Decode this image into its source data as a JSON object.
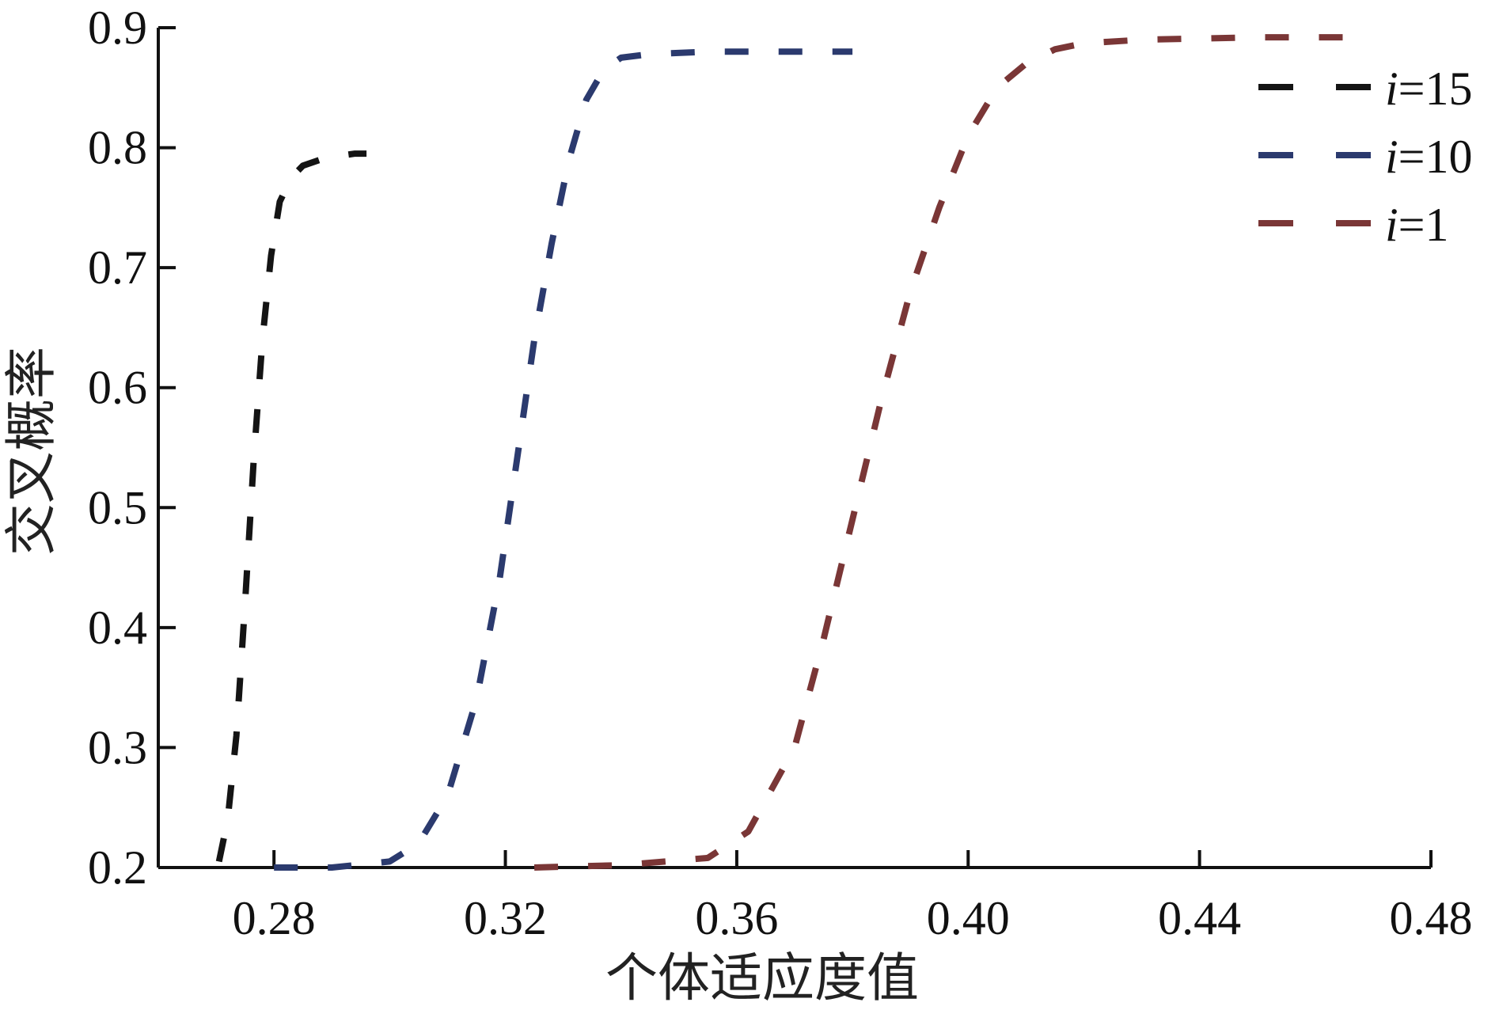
{
  "chart_data": {
    "type": "line",
    "title": "",
    "xlabel": "个体适应度值",
    "ylabel": "交叉概率",
    "xlim": [
      0.26,
      0.48
    ],
    "ylim": [
      0.2,
      0.9
    ],
    "xticks": [
      0.28,
      0.32,
      0.36,
      0.4,
      0.44,
      0.48
    ],
    "xtick_labels": [
      "0.28",
      "0.32",
      "0.36",
      "0.40",
      "0.44",
      "0.48"
    ],
    "yticks": [
      0.2,
      0.3,
      0.4,
      0.5,
      0.6,
      0.7,
      0.8,
      0.9
    ],
    "ytick_labels": [
      "0.2",
      "0.3",
      "0.4",
      "0.5",
      "0.6",
      "0.7",
      "0.8",
      "0.9"
    ],
    "grid": false,
    "legend_position": "top-right",
    "line_style": "dashed",
    "series": [
      {
        "name": "i=15",
        "legend_italic": "i",
        "legend_rest": "=15",
        "color": "#141414",
        "x": [
          0.2705,
          0.272,
          0.2735,
          0.275,
          0.2765,
          0.278,
          0.2795,
          0.281,
          0.283,
          0.285,
          0.288,
          0.291,
          0.294,
          0.296
        ],
        "y": [
          0.205,
          0.24,
          0.31,
          0.42,
          0.54,
          0.64,
          0.71,
          0.755,
          0.775,
          0.785,
          0.79,
          0.793,
          0.795,
          0.795
        ]
      },
      {
        "name": "i=10",
        "legend_italic": "i",
        "legend_rest": "=10",
        "color": "#2b3a6e",
        "x": [
          0.28,
          0.29,
          0.3,
          0.305,
          0.31,
          0.315,
          0.319,
          0.322,
          0.325,
          0.328,
          0.331,
          0.334,
          0.337,
          0.34,
          0.345,
          0.355,
          0.37,
          0.38
        ],
        "y": [
          0.2,
          0.2,
          0.205,
          0.22,
          0.26,
          0.34,
          0.44,
          0.54,
          0.64,
          0.72,
          0.79,
          0.84,
          0.865,
          0.875,
          0.878,
          0.88,
          0.88,
          0.88
        ]
      },
      {
        "name": "i=1",
        "legend_italic": "i",
        "legend_rest": "=1",
        "color": "#7a3636",
        "x": [
          0.325,
          0.34,
          0.355,
          0.362,
          0.37,
          0.375,
          0.38,
          0.385,
          0.39,
          0.395,
          0.4,
          0.405,
          0.41,
          0.415,
          0.42,
          0.43,
          0.45,
          0.467
        ],
        "y": [
          0.2,
          0.202,
          0.208,
          0.23,
          0.3,
          0.39,
          0.49,
          0.59,
          0.68,
          0.75,
          0.81,
          0.85,
          0.87,
          0.882,
          0.887,
          0.89,
          0.892,
          0.892
        ]
      }
    ]
  }
}
